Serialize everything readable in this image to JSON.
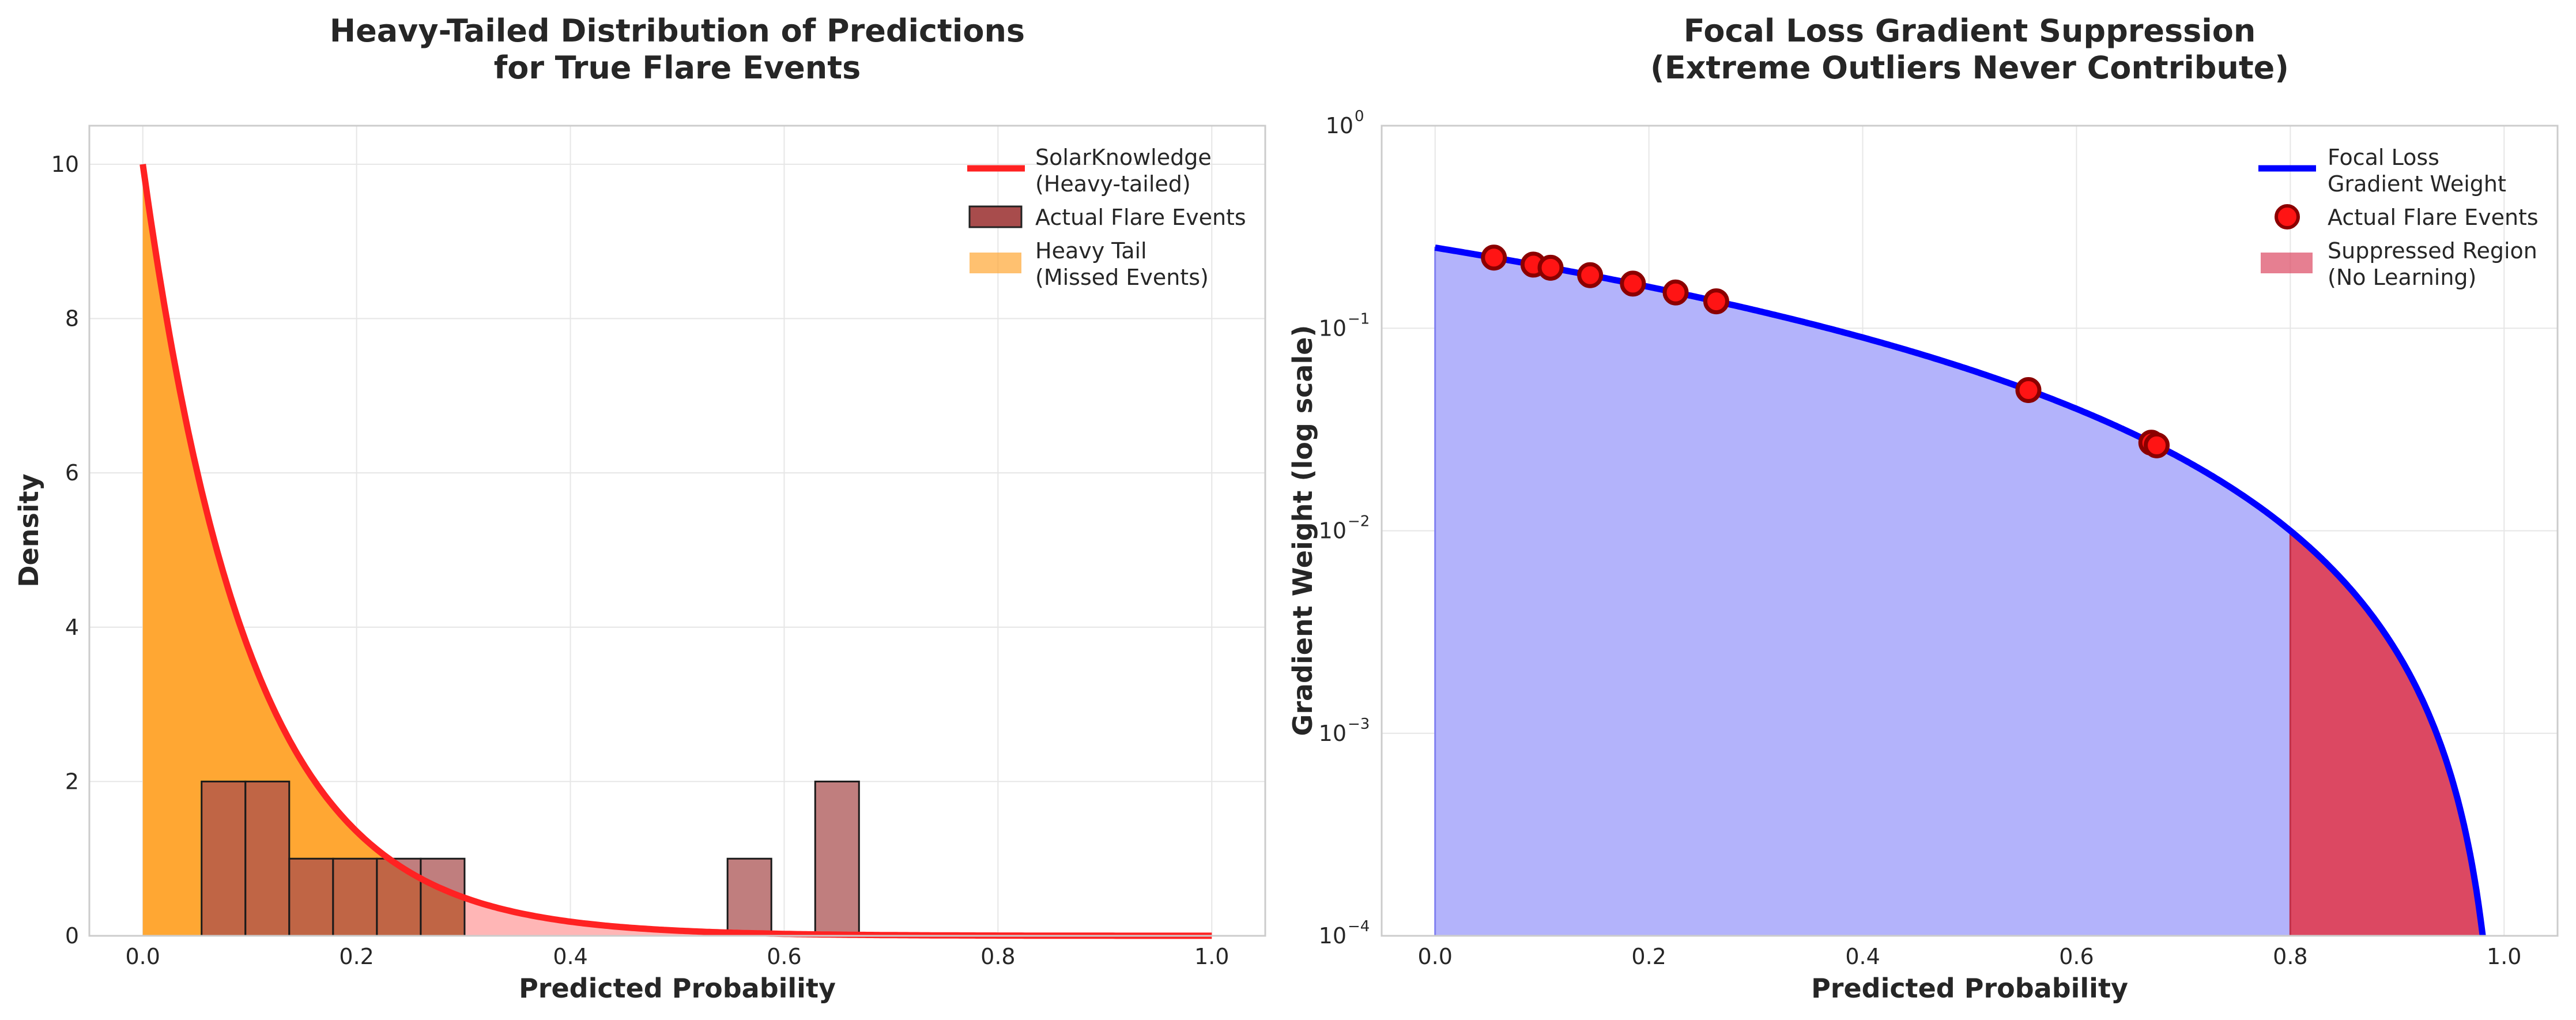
{
  "chart_data": [
    {
      "type": "area",
      "title_lines": [
        "Heavy-Tailed Distribution of Predictions",
        "for True Flare Events"
      ],
      "xlabel": "Predicted Probability",
      "ylabel": "Density",
      "xlim": [
        -0.05,
        1.05
      ],
      "ylim": [
        0,
        10.5
      ],
      "xticks": [
        0.0,
        0.2,
        0.4,
        0.6,
        0.8,
        1.0
      ],
      "xtick_labels": [
        "0.0",
        "0.2",
        "0.4",
        "0.6",
        "0.8",
        "1.0"
      ],
      "yticks": [
        0,
        2,
        4,
        6,
        8,
        10
      ],
      "ytick_labels": [
        "0",
        "2",
        "4",
        "6",
        "8",
        "10"
      ],
      "grid": true,
      "legend_position": "upper-right",
      "curve": {
        "name_lines": [
          "SolarKnowledge",
          "(Heavy-tailed)"
        ],
        "color": "#ff2222",
        "function": "10*exp(-10x)",
        "x_range": [
          0,
          1
        ],
        "peak": 10,
        "decay_rate": 10
      },
      "fill_heavy_tail": {
        "name_lines": [
          "Heavy Tail",
          "(Missed Events)"
        ],
        "color": "#ffa733",
        "x_range": [
          0,
          0.3
        ]
      },
      "fill_rest": {
        "color": "#ffb6b6",
        "x_range": [
          0.3,
          1.0
        ]
      },
      "histogram": {
        "name": "Actual Flare Events",
        "color": "#a84c4c",
        "bin_width": 0.041,
        "bins": [
          {
            "x0": 0.055,
            "count": 2
          },
          {
            "x0": 0.096,
            "count": 2
          },
          {
            "x0": 0.137,
            "count": 1
          },
          {
            "x0": 0.178,
            "count": 1
          },
          {
            "x0": 0.219,
            "count": 1
          },
          {
            "x0": 0.26,
            "count": 1
          },
          {
            "x0": 0.547,
            "count": 1
          },
          {
            "x0": 0.629,
            "count": 2
          }
        ]
      }
    },
    {
      "type": "line",
      "title_lines": [
        "Focal Loss Gradient Suppression",
        "(Extreme Outliers Never Contribute)"
      ],
      "xlabel": "Predicted Probability",
      "ylabel": "Gradient Weight (log scale)",
      "xlim": [
        -0.05,
        1.05
      ],
      "ylim": [
        0.0001,
        1
      ],
      "yscale": "log",
      "xticks": [
        0.0,
        0.2,
        0.4,
        0.6,
        0.8,
        1.0
      ],
      "xtick_labels": [
        "0.0",
        "0.2",
        "0.4",
        "0.6",
        "0.8",
        "1.0"
      ],
      "ytick_exponents": [
        "0",
        "-1",
        "-2",
        "-3",
        "-4"
      ],
      "ytick_base": "10",
      "grid": true,
      "legend_position": "upper-right",
      "curve": {
        "name_lines": [
          "Focal Loss",
          "Gradient Weight"
        ],
        "color": "#0000ff",
        "function": "0.25*(1-x)^2",
        "x_range": [
          0,
          0.98
        ]
      },
      "fill_under": {
        "color": "#b3b3fb",
        "x_range": [
          0,
          0.8
        ]
      },
      "suppressed_region": {
        "name_lines": [
          "Suppressed Region",
          "(No Learning)"
        ],
        "color": "#dc4862",
        "x_range": [
          0.8,
          0.98
        ]
      },
      "points": {
        "name": "Actual Flare Events",
        "color": "#ff1414",
        "edge_color": "#8b0000",
        "x": [
          0.055,
          0.092,
          0.108,
          0.145,
          0.185,
          0.225,
          0.263,
          0.555,
          0.67,
          0.675
        ]
      }
    }
  ]
}
